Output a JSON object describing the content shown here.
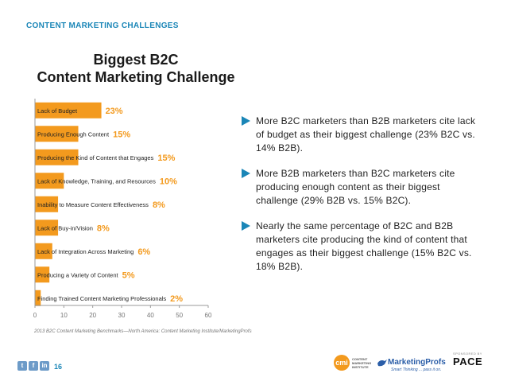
{
  "header": {
    "section_title": "CONTENT MARKETING CHALLENGES"
  },
  "chart_data": {
    "type": "bar",
    "orientation": "horizontal",
    "title": "Biggest B2C Content Marketing Challenge",
    "title_lines": [
      "Biggest B2C",
      "Content Marketing Challenge"
    ],
    "categories": [
      "Lack of Budget",
      "Producing Enough Content",
      "Producing the Kind of Content that Engages",
      "Lack of Knowledge, Training, and Resources",
      "Inability to Measure Content Effectiveness",
      "Lack of Buy-in/Vision",
      "Lack of Integration Across Marketing",
      "Producing a Variety of Content",
      "Finding Trained Content Marketing Professionals"
    ],
    "values": [
      23,
      15,
      15,
      10,
      8,
      8,
      6,
      5,
      2
    ],
    "value_labels": [
      "23%",
      "15%",
      "15%",
      "10%",
      "8%",
      "8%",
      "6%",
      "5%",
      "2%"
    ],
    "xlim": [
      0,
      60
    ],
    "x_ticks": [
      "0",
      "10",
      "20",
      "30",
      "40",
      "50",
      "60"
    ],
    "xlabel": "",
    "ylabel": "",
    "grid": false,
    "bar_color": "#f39a1e",
    "label_color": "#f39a1e"
  },
  "bullets": [
    "More B2C marketers than B2B marketers cite lack of budget as their biggest challenge (23% B2C vs. 14% B2B).",
    "More B2B marketers than B2C marketers cite producing enough content as their biggest challenge (29% B2B vs. 15% B2C).",
    "Nearly the same percentage of B2C and B2B marketers cite producing the kind of content that engages as their biggest challenge (15% B2C vs. 18% B2B)."
  ],
  "source": "2013 B2C Content Marketing Benchmarks—North America: Content Marketing Institute/MarketingProfs",
  "footer": {
    "page_number": "16",
    "social": [
      "t",
      "f",
      "in"
    ],
    "cmi_badge": "cmi",
    "cmi_words": "CONTENT MARKETING INSTITUTE",
    "mp_name": "MarketingProfs",
    "mp_tagline": "Smart Thinking ... pass it on.",
    "pace_sponsor": "SPONSORED BY",
    "pace_name": "PACE"
  },
  "colors": {
    "accent": "#1a86b7",
    "bar": "#f39a1e"
  }
}
